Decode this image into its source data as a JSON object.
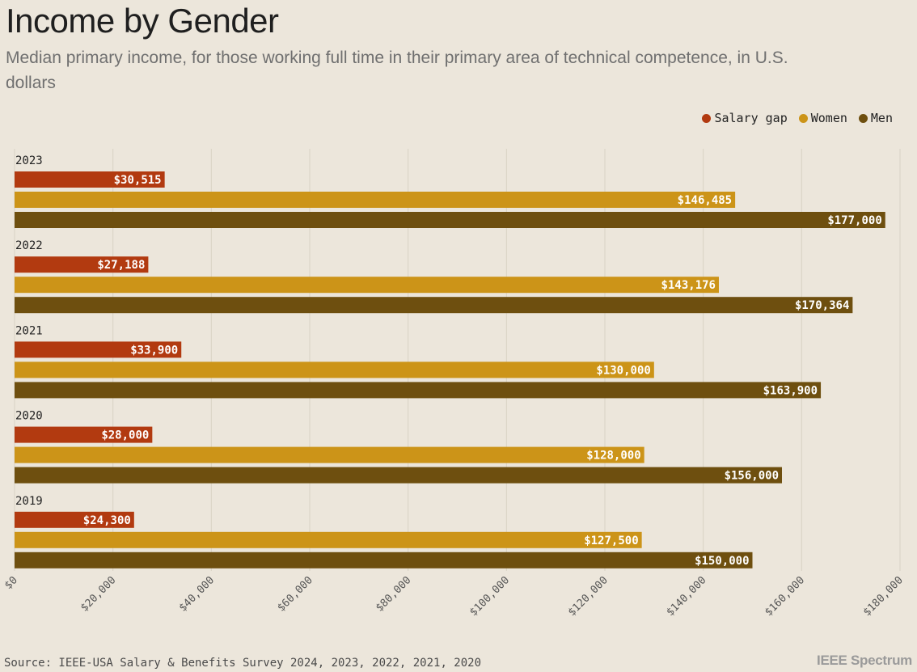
{
  "header": {
    "title": "Income by Gender",
    "subtitle": "Median primary income, for those working full time in their primary area of technical competence, in U.S. dollars"
  },
  "legend": {
    "items": [
      {
        "label": "Salary gap",
        "color": "#b23a10"
      },
      {
        "label": "Women",
        "color": "#cc9418"
      },
      {
        "label": "Men",
        "color": "#6e4f0f"
      }
    ]
  },
  "chart_data": {
    "type": "bar",
    "orientation": "horizontal",
    "title": "Income by Gender",
    "subtitle": "Median primary income, for those working full time in their primary area of technical competence, in U.S. dollars",
    "xlabel": "",
    "ylabel": "",
    "xlim": [
      0,
      180000
    ],
    "grid": true,
    "legend_position": "top-right",
    "categories": [
      "2023",
      "2022",
      "2021",
      "2020",
      "2019"
    ],
    "ticks": [
      0,
      20000,
      40000,
      60000,
      80000,
      100000,
      120000,
      140000,
      160000,
      180000
    ],
    "tick_labels": [
      "$0",
      "$20,000",
      "$40,000",
      "$60,000",
      "$80,000",
      "$100,000",
      "$120,000",
      "$140,000",
      "$160,000",
      "$180,000"
    ],
    "series": [
      {
        "name": "Salary gap",
        "color": "#b23a10",
        "values": [
          30515,
          27188,
          33900,
          28000,
          24300
        ],
        "labels": [
          "$30,515",
          "$27,188",
          "$33,900",
          "$28,000",
          "$24,300"
        ]
      },
      {
        "name": "Women",
        "color": "#cc9418",
        "values": [
          146485,
          143176,
          130000,
          128000,
          127500
        ],
        "labels": [
          "$146,485",
          "$143,176",
          "$130,000",
          "$128,000",
          "$127,500"
        ]
      },
      {
        "name": "Men",
        "color": "#6e4f0f",
        "values": [
          177000,
          170364,
          163900,
          156000,
          150000
        ],
        "labels": [
          "$177,000",
          "$170,364",
          "$163,900",
          "$156,000",
          "$150,000"
        ]
      }
    ]
  },
  "footer": {
    "source": "Source: IEEE-USA Salary & Benefits Survey 2024, 2023, 2022, 2021, 2020",
    "brand": "IEEE Spectrum"
  }
}
